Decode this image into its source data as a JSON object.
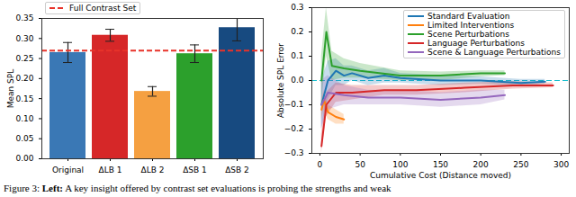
{
  "chart_data": [
    {
      "type": "bar",
      "ylabel": "Mean SPL",
      "categories": [
        "Original",
        "ΔLB 1",
        "ΔLB 2",
        "ΔSB 1",
        "ΔSB 2"
      ],
      "values": [
        0.265,
        0.308,
        0.168,
        0.262,
        0.327
      ],
      "errors": [
        0.025,
        0.015,
        0.012,
        0.022,
        0.033
      ],
      "colors": [
        "#3a78b5",
        "#d62728",
        "#f5a041",
        "#2ca02c",
        "#174a80"
      ],
      "ylim": [
        0,
        0.35
      ],
      "yticks": [
        {
          "value": 0,
          "label": "0.00"
        },
        {
          "value": 0.05,
          "label": "0.05"
        },
        {
          "value": 0.1,
          "label": "0.10"
        },
        {
          "value": 0.15,
          "label": "0.15"
        },
        {
          "value": 0.2,
          "label": "0.20"
        },
        {
          "value": 0.25,
          "label": "0.25"
        },
        {
          "value": 0.3,
          "label": "0.30"
        },
        {
          "value": 0.35,
          "label": "0.35"
        }
      ],
      "reference_line": {
        "name": "Full Contrast Set",
        "value": 0.27,
        "color": "#e8332a",
        "line_style": "dashed"
      },
      "legend": "upper left"
    },
    {
      "type": "line",
      "xlabel": "Cumulative Cost (Distance moved)",
      "ylabel": "Absolute SPL Error",
      "xlim": [
        -10,
        310
      ],
      "xticks": [
        0,
        50,
        100,
        150,
        200,
        250,
        300
      ],
      "ylim": [
        -0.3,
        0.3
      ],
      "yticks": [
        {
          "value": -0.3,
          "label": "−0.3"
        },
        {
          "value": -0.2,
          "label": "−0.2"
        },
        {
          "value": -0.1,
          "label": "−0.1"
        },
        {
          "value": 0,
          "label": "0.0"
        },
        {
          "value": 0.1,
          "label": "0.1"
        },
        {
          "value": 0.2,
          "label": "0.2"
        },
        {
          "value": 0.3,
          "label": "0.3"
        }
      ],
      "reference_line": {
        "value": 0,
        "color": "#17becf",
        "line_style": "dashed"
      },
      "legend": "upper right",
      "series": [
        {
          "name": "Standard Evaluation",
          "color": "#1f77b4",
          "x": [
            2,
            10,
            20,
            30,
            40,
            60,
            80,
            100,
            150,
            200,
            250,
            280
          ],
          "values": [
            -0.1,
            0.0,
            0.04,
            0.02,
            0.03,
            0.01,
            0.02,
            0.01,
            0.0,
            0.0,
            -0.01,
            -0.005
          ],
          "lower": [
            -0.2,
            -0.08,
            -0.02,
            -0.02,
            0.0,
            -0.02,
            -0.01,
            -0.01,
            -0.02,
            -0.015,
            -0.025,
            -0.015
          ],
          "upper": [
            0.0,
            0.08,
            0.09,
            0.06,
            0.06,
            0.04,
            0.05,
            0.03,
            0.02,
            0.015,
            0.005,
            0.005
          ]
        },
        {
          "name": "Limited Interventions",
          "color": "#ff7f0e",
          "x": [
            2,
            5,
            10,
            20,
            30
          ],
          "values": [
            -0.12,
            -0.08,
            -0.13,
            -0.15,
            -0.16
          ],
          "lower": [
            -0.16,
            -0.12,
            -0.16,
            -0.18,
            -0.18
          ],
          "upper": [
            -0.08,
            -0.04,
            -0.1,
            -0.12,
            -0.14
          ]
        },
        {
          "name": "Scene Perturbations",
          "color": "#2ca02c",
          "x": [
            2,
            8,
            15,
            30,
            50,
            100,
            150,
            200,
            230
          ],
          "values": [
            0.0,
            0.2,
            0.06,
            0.05,
            0.04,
            0.02,
            0.02,
            0.03,
            0.03
          ],
          "lower": [
            -0.1,
            0.1,
            0.0,
            0.01,
            0.01,
            0.0,
            0.0,
            0.015,
            0.02
          ],
          "upper": [
            0.1,
            0.3,
            0.12,
            0.09,
            0.07,
            0.04,
            0.035,
            0.04,
            0.04
          ]
        },
        {
          "name": "Language Perturbations",
          "color": "#d62728",
          "x": [
            2,
            8,
            20,
            40,
            80,
            120,
            180,
            240,
            290
          ],
          "values": [
            -0.27,
            -0.1,
            -0.05,
            -0.05,
            -0.04,
            -0.04,
            -0.03,
            -0.02,
            -0.02
          ],
          "lower": [
            -0.3,
            -0.15,
            -0.09,
            -0.08,
            -0.06,
            -0.06,
            -0.05,
            -0.035,
            -0.03
          ],
          "upper": [
            -0.22,
            -0.05,
            -0.01,
            -0.02,
            -0.02,
            -0.02,
            -0.01,
            -0.005,
            -0.01
          ]
        },
        {
          "name": "Scene & Language Perturbations",
          "color": "#9467bd",
          "x": [
            2,
            10,
            30,
            60,
            100,
            150,
            200,
            230
          ],
          "values": [
            -0.1,
            -0.05,
            -0.06,
            -0.07,
            -0.07,
            -0.08,
            -0.07,
            -0.06
          ],
          "lower": [
            -0.2,
            -0.12,
            -0.1,
            -0.1,
            -0.1,
            -0.11,
            -0.1,
            -0.08
          ],
          "upper": [
            0.0,
            0.02,
            -0.02,
            -0.04,
            -0.04,
            -0.05,
            -0.04,
            -0.04
          ]
        }
      ]
    }
  ],
  "caption": {
    "label": "Figure 3:",
    "bold": "Left:",
    "text": "A key insight offered by contrast set evaluations is probing the strengths and weak"
  }
}
